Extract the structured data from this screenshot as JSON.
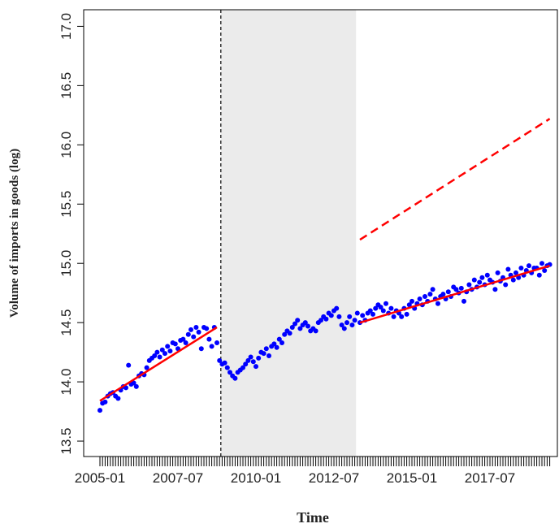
{
  "chart_data": {
    "type": "scatter",
    "y_label": "Volume of imports in goods (log)",
    "x_label": "Time",
    "categories": [
      "2005-01",
      null,
      null,
      null,
      null,
      null,
      null,
      null,
      null,
      null,
      null,
      null,
      null,
      null,
      null,
      null,
      null,
      null,
      null,
      null,
      null,
      null,
      null,
      null,
      null,
      null,
      null,
      null,
      null,
      null,
      "2007-07",
      null,
      null,
      null,
      null,
      null,
      null,
      null,
      null,
      null,
      null,
      null,
      null,
      null,
      null,
      null,
      null,
      null,
      null,
      null,
      null,
      null,
      null,
      null,
      null,
      null,
      null,
      null,
      null,
      null,
      "2010-01",
      null,
      null,
      null,
      null,
      null,
      null,
      null,
      null,
      null,
      null,
      null,
      null,
      null,
      null,
      null,
      null,
      null,
      null,
      null,
      null,
      null,
      null,
      null,
      null,
      null,
      null,
      null,
      null,
      null,
      "2012-07",
      null,
      null,
      null,
      null,
      null,
      null,
      null,
      null,
      null,
      null,
      null,
      null,
      null,
      null,
      null,
      null,
      null,
      null,
      null,
      null,
      null,
      null,
      null,
      null,
      null,
      null,
      null,
      null,
      null,
      "2015-01",
      null,
      null,
      null,
      null,
      null,
      null,
      null,
      null,
      null,
      null,
      null,
      null,
      null,
      null,
      null,
      null,
      null,
      null,
      null,
      null,
      null,
      null,
      null,
      null,
      null,
      null,
      null,
      null,
      null,
      "2017-07",
      null,
      null,
      null,
      null,
      null,
      null,
      null,
      null,
      null,
      null,
      null,
      null,
      null,
      null,
      null,
      null,
      null,
      null,
      null,
      null,
      null,
      null,
      null
    ],
    "series": [
      {
        "color": "#0000ff",
        "values": [
          13.76,
          13.82,
          13.83,
          13.88,
          13.9,
          13.91,
          13.88,
          13.86,
          13.93,
          13.96,
          13.95,
          14.14,
          13.98,
          13.99,
          13.96,
          14.05,
          14.07,
          14.06,
          14.12,
          14.18,
          14.2,
          14.22,
          14.25,
          14.21,
          14.27,
          14.24,
          14.3,
          14.26,
          14.33,
          14.32,
          14.28,
          14.35,
          14.36,
          14.33,
          14.4,
          14.44,
          14.38,
          14.46,
          14.42,
          14.28,
          14.46,
          14.45,
          14.36,
          14.3,
          14.46,
          14.33,
          14.18,
          14.15,
          14.16,
          14.12,
          14.08,
          14.05,
          14.03,
          14.08,
          14.1,
          14.12,
          14.15,
          14.18,
          14.21,
          14.17,
          14.13,
          14.2,
          14.25,
          14.24,
          14.28,
          14.22,
          14.3,
          14.32,
          14.29,
          14.36,
          14.33,
          14.4,
          14.43,
          14.41,
          14.46,
          14.49,
          14.52,
          14.45,
          14.48,
          14.5,
          14.47,
          14.43,
          14.45,
          14.43,
          14.5,
          14.52,
          14.55,
          14.53,
          14.58,
          14.56,
          14.6,
          14.62,
          14.55,
          14.48,
          14.45,
          14.5,
          14.55,
          14.48,
          14.52,
          14.58,
          14.5,
          14.56,
          14.52,
          14.58,
          14.6,
          14.57,
          14.62,
          14.65,
          14.63,
          14.6,
          14.66,
          14.58,
          14.62,
          14.55,
          14.6,
          14.58,
          14.55,
          14.62,
          14.57,
          14.65,
          14.68,
          14.62,
          14.66,
          14.7,
          14.65,
          14.72,
          14.68,
          14.74,
          14.78,
          14.7,
          14.66,
          14.72,
          14.74,
          14.7,
          14.76,
          14.72,
          14.8,
          14.78,
          14.75,
          14.79,
          14.68,
          14.76,
          14.82,
          14.78,
          14.86,
          14.8,
          14.84,
          14.88,
          14.82,
          14.9,
          14.86,
          14.84,
          14.78,
          14.92,
          14.85,
          14.88,
          14.82,
          14.95,
          14.9,
          14.86,
          14.92,
          14.88,
          14.96,
          14.9,
          14.94,
          14.98,
          14.92,
          14.96,
          14.96,
          14.9,
          15.0,
          14.94,
          14.98,
          14.99
        ]
      }
    ],
    "trend_lines": [
      {
        "start": 0,
        "end": 45,
        "values": [
          13.84,
          14.46
        ],
        "color": "#ff0000",
        "dashed": false
      },
      {
        "start": 100,
        "end": 173,
        "values": [
          14.5,
          14.98
        ],
        "color": "#ff0000",
        "dashed": false
      },
      {
        "start": 100,
        "end": 173,
        "values": [
          15.2,
          16.22
        ],
        "color": "#ff0000",
        "dashed": true
      }
    ],
    "shaded_range": [
      46.5,
      98.5
    ],
    "shade_color": "#ebebeb",
    "vline": 46.5,
    "ylim": [
      13.37,
      17.14
    ],
    "yticks": [
      13.5,
      {
        "value": 14,
        "label": "14.0"
      },
      14.5,
      {
        "value": 15,
        "label": "15.0"
      },
      15.5,
      {
        "value": 16,
        "label": "16.0"
      },
      16.5,
      {
        "value": 17,
        "label": "17.0"
      }
    ]
  }
}
